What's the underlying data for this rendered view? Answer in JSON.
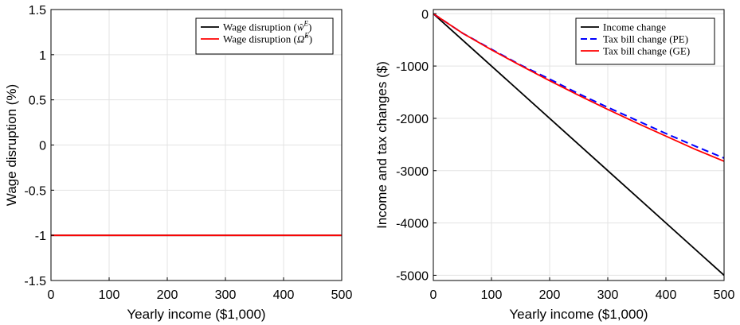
{
  "chart_data": [
    {
      "type": "line",
      "title": "",
      "xlabel": "Yearly income ($1,000)",
      "ylabel": "Wage disruption (%)",
      "xlim": [
        0,
        500
      ],
      "ylim": [
        -1.5,
        1.5
      ],
      "xticks": [
        0,
        100,
        200,
        300,
        400,
        500
      ],
      "yticks": [
        -1.5,
        -1,
        -0.5,
        0,
        0.5,
        1,
        1.5
      ],
      "grid": true,
      "legend_position": "top-right",
      "series": [
        {
          "name": "Wage disruption (ŵ^E)",
          "color": "#000000",
          "style": "solid",
          "x": [
            0,
            500
          ],
          "y": [
            -1,
            -1
          ]
        },
        {
          "name": "Wage disruption (Ω̂^E)",
          "color": "#ff0000",
          "style": "solid",
          "x": [
            0,
            500
          ],
          "y": [
            -1,
            -1
          ]
        }
      ]
    },
    {
      "type": "line",
      "title": "",
      "xlabel": "Yearly income ($1,000)",
      "ylabel": "Income and tax changes ($)",
      "xlim": [
        0,
        500
      ],
      "ylim": [
        -5100,
        80
      ],
      "xticks": [
        0,
        100,
        200,
        300,
        400,
        500
      ],
      "yticks": [
        0,
        -1000,
        -2000,
        -3000,
        -4000,
        -5000
      ],
      "grid": true,
      "legend_position": "top-right",
      "series": [
        {
          "name": "Income change",
          "color": "#000000",
          "style": "solid",
          "x": [
            0,
            500
          ],
          "y": [
            0,
            -5000
          ]
        },
        {
          "name": "Tax bill change (PE)",
          "color": "#0000ff",
          "style": "dashed",
          "x": [
            0,
            50,
            100,
            150,
            200,
            250,
            300,
            350,
            400,
            450,
            500
          ],
          "y": [
            0,
            -370,
            -680,
            -980,
            -1250,
            -1530,
            -1790,
            -2040,
            -2290,
            -2530,
            -2760
          ]
        },
        {
          "name": "Tax bill change (GE)",
          "color": "#ff0000",
          "style": "solid",
          "x": [
            0,
            50,
            100,
            150,
            200,
            250,
            300,
            350,
            400,
            450,
            500
          ],
          "y": [
            0,
            -370,
            -690,
            -990,
            -1280,
            -1560,
            -1830,
            -2090,
            -2340,
            -2590,
            -2820
          ]
        }
      ]
    }
  ]
}
